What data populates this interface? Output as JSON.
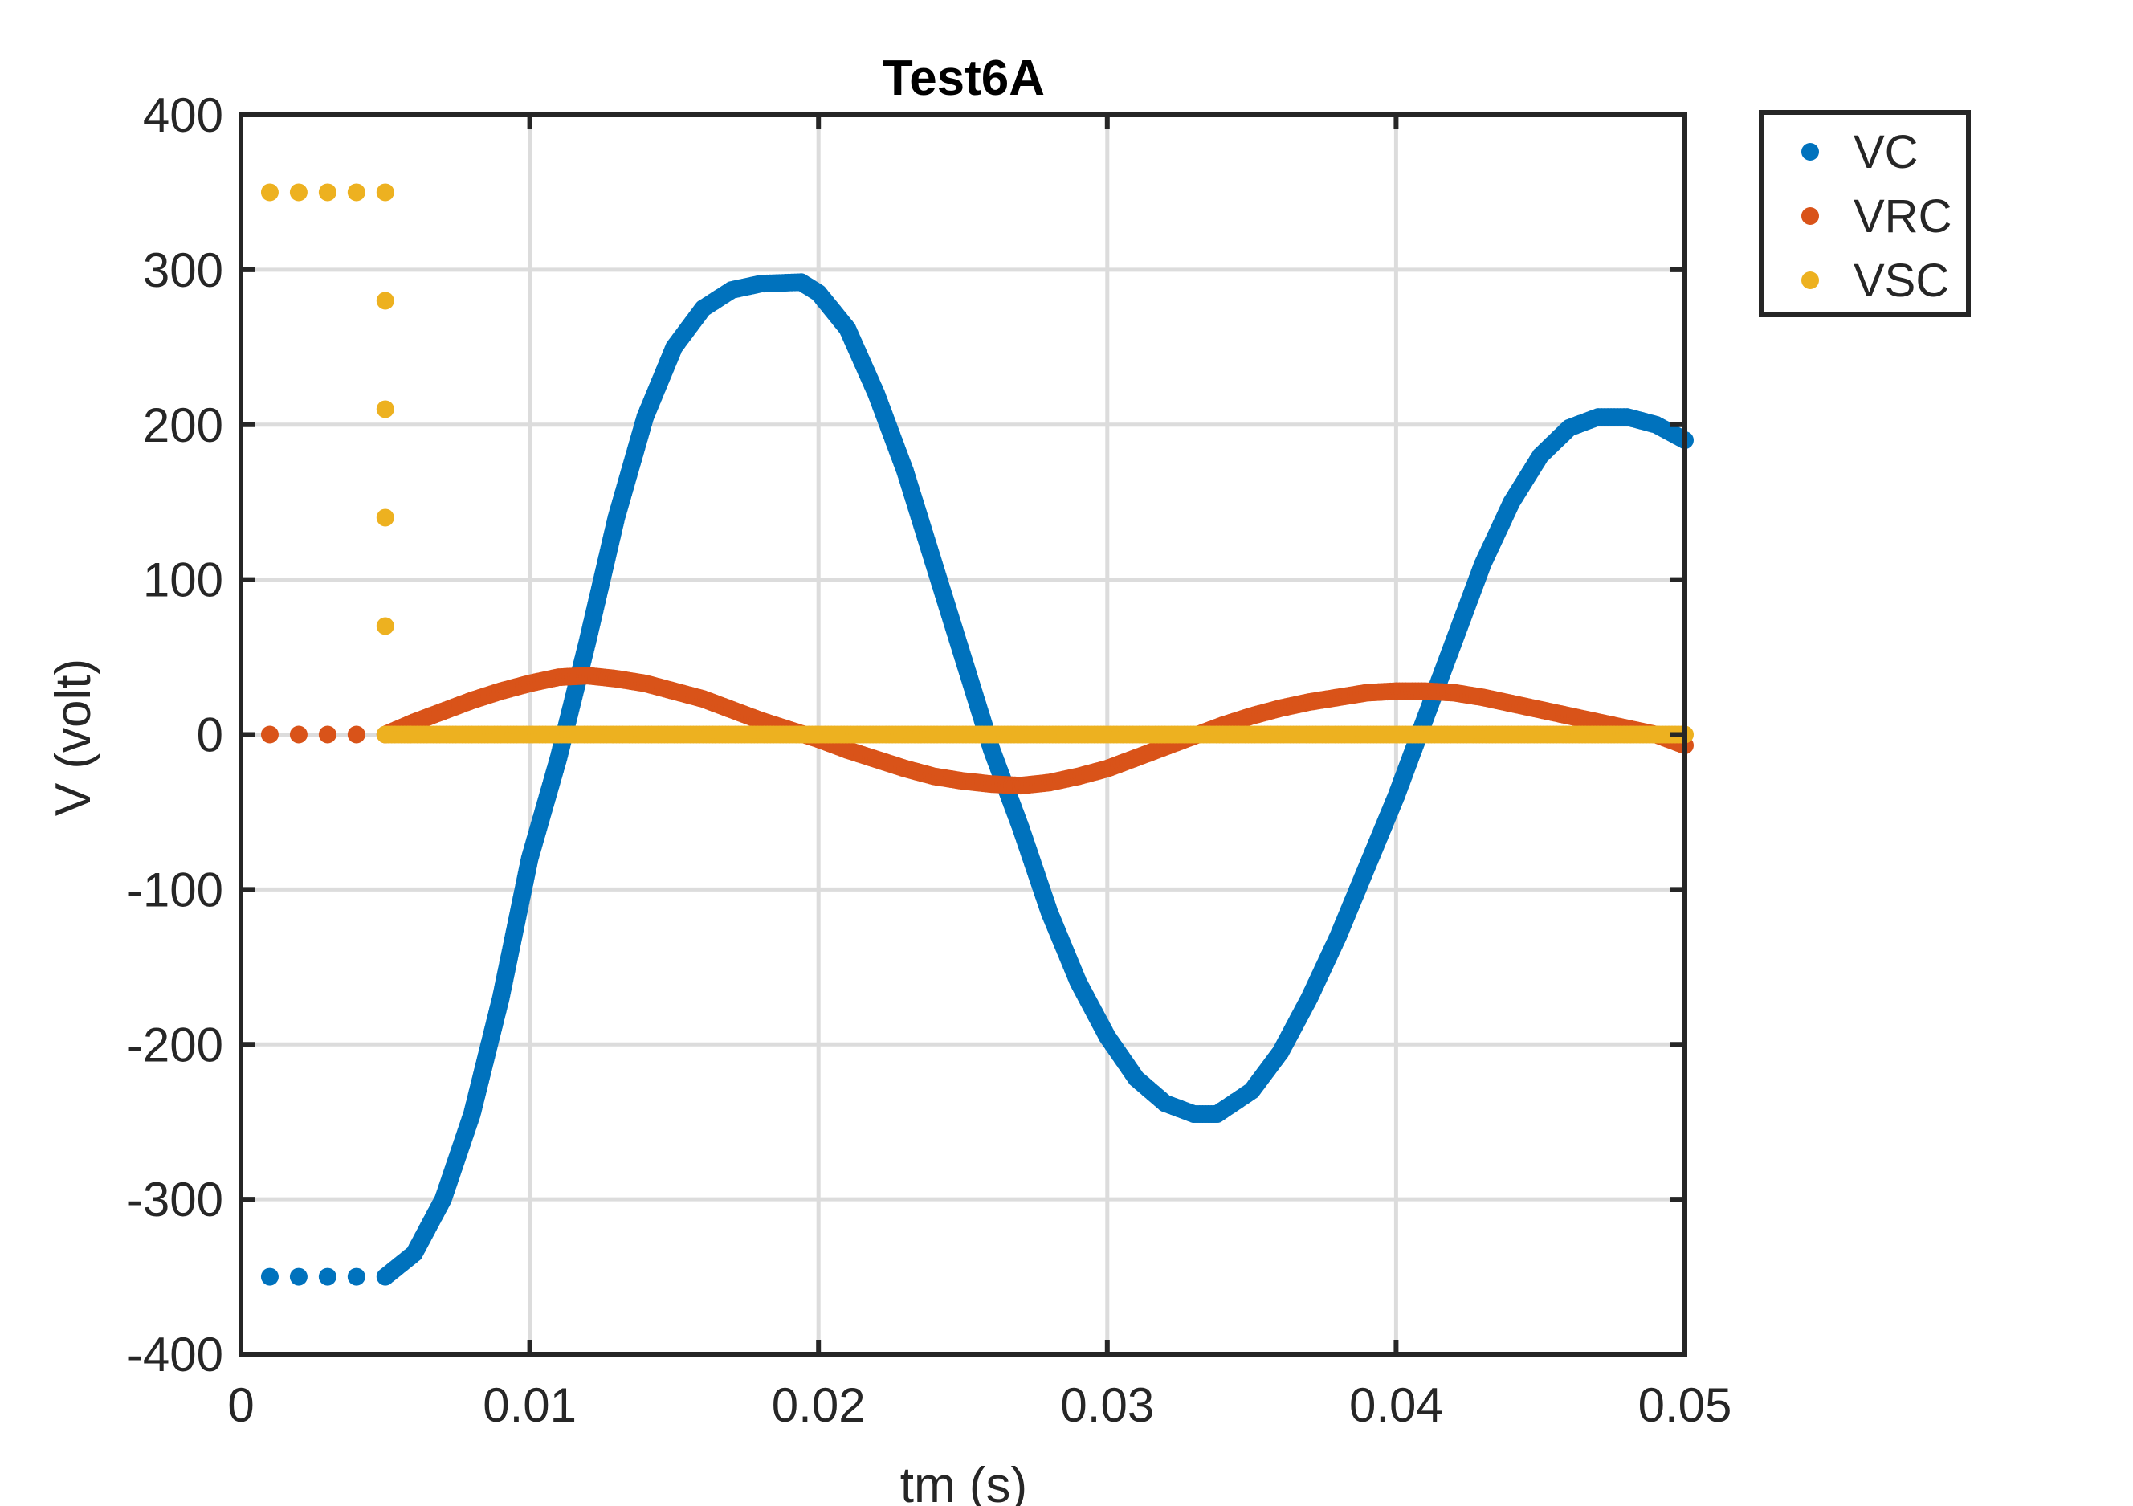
{
  "chart_data": {
    "type": "scatter",
    "title": "Test6A",
    "xlabel": "tm (s)",
    "ylabel": "V (volt)",
    "xlim": [
      0,
      0.05
    ],
    "ylim": [
      -400,
      400
    ],
    "grid": true,
    "legend_position": "outside-top-right",
    "x_ticks": [
      "0",
      "0.01",
      "0.02",
      "0.03",
      "0.04",
      "0.05"
    ],
    "y_ticks": [
      "-400",
      "-300",
      "-200",
      "-100",
      "0",
      "100",
      "200",
      "300",
      "400"
    ],
    "x_tick_values": [
      0,
      0.01,
      0.02,
      0.03,
      0.04,
      0.05
    ],
    "y_tick_values": [
      -400,
      -300,
      -200,
      -100,
      0,
      100,
      200,
      300,
      400
    ],
    "series": [
      {
        "name": "VC",
        "color": "#0072BD",
        "points": [
          [
            0.001,
            -350
          ],
          [
            0.002,
            -350
          ],
          [
            0.003,
            -350
          ],
          [
            0.004,
            -350
          ],
          [
            0.005,
            -350
          ],
          [
            0.006,
            -335
          ],
          [
            0.007,
            -300
          ],
          [
            0.008,
            -245
          ],
          [
            0.009,
            -170
          ],
          [
            0.01,
            -80
          ],
          [
            0.011,
            -15
          ],
          [
            0.012,
            60
          ],
          [
            0.013,
            140
          ],
          [
            0.014,
            205
          ],
          [
            0.015,
            250
          ],
          [
            0.016,
            275
          ],
          [
            0.017,
            287
          ],
          [
            0.018,
            291
          ],
          [
            0.0194,
            292
          ],
          [
            0.02,
            285
          ],
          [
            0.021,
            262
          ],
          [
            0.022,
            220
          ],
          [
            0.023,
            170
          ],
          [
            0.024,
            110
          ],
          [
            0.025,
            50
          ],
          [
            0.026,
            -10
          ],
          [
            0.027,
            -60
          ],
          [
            0.028,
            -115
          ],
          [
            0.029,
            -160
          ],
          [
            0.03,
            -195
          ],
          [
            0.031,
            -222
          ],
          [
            0.032,
            -238
          ],
          [
            0.033,
            -245
          ],
          [
            0.0338,
            -245
          ],
          [
            0.035,
            -230
          ],
          [
            0.036,
            -205
          ],
          [
            0.037,
            -170
          ],
          [
            0.038,
            -130
          ],
          [
            0.039,
            -85
          ],
          [
            0.04,
            -40
          ],
          [
            0.041,
            10
          ],
          [
            0.042,
            60
          ],
          [
            0.043,
            110
          ],
          [
            0.044,
            150
          ],
          [
            0.045,
            180
          ],
          [
            0.046,
            198
          ],
          [
            0.047,
            205
          ],
          [
            0.048,
            205
          ],
          [
            0.049,
            200
          ],
          [
            0.05,
            190
          ]
        ]
      },
      {
        "name": "VRC",
        "color": "#D95319",
        "points": [
          [
            0.001,
            0
          ],
          [
            0.002,
            0
          ],
          [
            0.003,
            0
          ],
          [
            0.004,
            0
          ],
          [
            0.005,
            0
          ],
          [
            0.006,
            8
          ],
          [
            0.007,
            15
          ],
          [
            0.008,
            22
          ],
          [
            0.009,
            28
          ],
          [
            0.01,
            33
          ],
          [
            0.011,
            37
          ],
          [
            0.012,
            38
          ],
          [
            0.013,
            36
          ],
          [
            0.014,
            33
          ],
          [
            0.015,
            28
          ],
          [
            0.016,
            23
          ],
          [
            0.017,
            16
          ],
          [
            0.018,
            9
          ],
          [
            0.019,
            3
          ],
          [
            0.02,
            -3
          ],
          [
            0.021,
            -10
          ],
          [
            0.022,
            -16
          ],
          [
            0.023,
            -22
          ],
          [
            0.024,
            -27
          ],
          [
            0.025,
            -30
          ],
          [
            0.026,
            -32
          ],
          [
            0.027,
            -33
          ],
          [
            0.028,
            -31
          ],
          [
            0.029,
            -27
          ],
          [
            0.03,
            -22
          ],
          [
            0.031,
            -15
          ],
          [
            0.032,
            -8
          ],
          [
            0.033,
            -1
          ],
          [
            0.034,
            6
          ],
          [
            0.035,
            12
          ],
          [
            0.036,
            17
          ],
          [
            0.037,
            21
          ],
          [
            0.038,
            24
          ],
          [
            0.039,
            27
          ],
          [
            0.04,
            28
          ],
          [
            0.041,
            28
          ],
          [
            0.042,
            27
          ],
          [
            0.043,
            24
          ],
          [
            0.044,
            20
          ],
          [
            0.045,
            16
          ],
          [
            0.046,
            12
          ],
          [
            0.047,
            8
          ],
          [
            0.048,
            4
          ],
          [
            0.049,
            0
          ],
          [
            0.05,
            -7
          ]
        ]
      },
      {
        "name": "VSC",
        "color": "#EDB120",
        "points": [
          [
            0.001,
            350
          ],
          [
            0.002,
            350
          ],
          [
            0.003,
            350
          ],
          [
            0.004,
            350
          ],
          [
            0.005,
            350
          ],
          [
            0.005,
            280
          ],
          [
            0.005,
            210
          ],
          [
            0.005,
            140
          ],
          [
            0.005,
            70
          ],
          [
            0.005,
            0
          ],
          [
            0.006,
            0
          ],
          [
            0.007,
            0
          ],
          [
            0.008,
            0
          ],
          [
            0.009,
            0
          ],
          [
            0.01,
            0
          ],
          [
            0.011,
            0
          ],
          [
            0.012,
            0
          ],
          [
            0.013,
            0
          ],
          [
            0.014,
            0
          ],
          [
            0.015,
            0
          ],
          [
            0.016,
            0
          ],
          [
            0.017,
            0
          ],
          [
            0.018,
            0
          ],
          [
            0.019,
            0
          ],
          [
            0.02,
            0
          ],
          [
            0.021,
            0
          ],
          [
            0.022,
            0
          ],
          [
            0.023,
            0
          ],
          [
            0.024,
            0
          ],
          [
            0.025,
            0
          ],
          [
            0.026,
            0
          ],
          [
            0.027,
            0
          ],
          [
            0.028,
            0
          ],
          [
            0.029,
            0
          ],
          [
            0.03,
            0
          ],
          [
            0.031,
            0
          ],
          [
            0.032,
            0
          ],
          [
            0.033,
            0
          ],
          [
            0.034,
            0
          ],
          [
            0.035,
            0
          ],
          [
            0.036,
            0
          ],
          [
            0.037,
            0
          ],
          [
            0.038,
            0
          ],
          [
            0.039,
            0
          ],
          [
            0.04,
            0
          ],
          [
            0.041,
            0
          ],
          [
            0.042,
            0
          ],
          [
            0.043,
            0
          ],
          [
            0.044,
            0
          ],
          [
            0.045,
            0
          ],
          [
            0.046,
            0
          ],
          [
            0.047,
            0
          ],
          [
            0.048,
            0
          ],
          [
            0.049,
            0
          ],
          [
            0.05,
            0
          ]
        ]
      }
    ]
  }
}
